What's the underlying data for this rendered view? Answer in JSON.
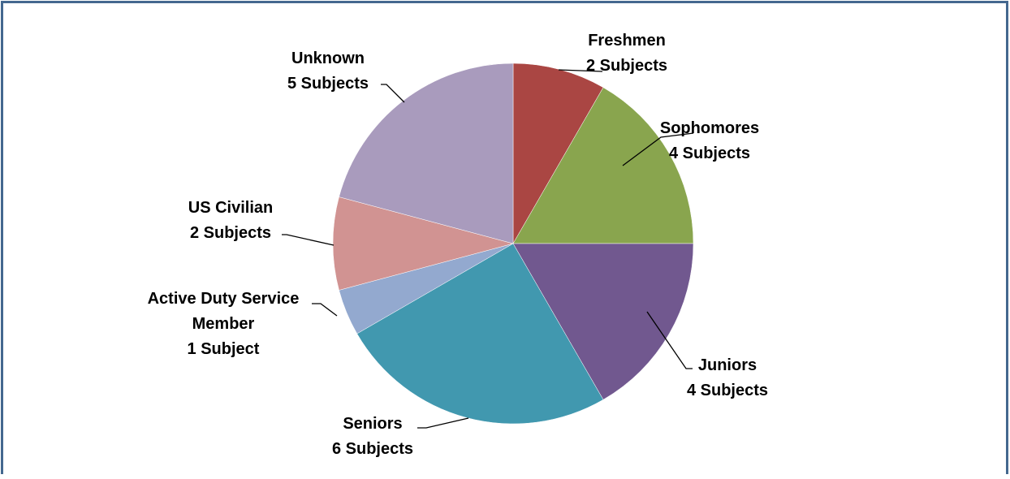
{
  "chart_data": {
    "type": "pie",
    "title": "",
    "start_angle_deg": 0,
    "direction": "clockwise",
    "slices": [
      {
        "category": "Freshmen",
        "count_label": "2 Subjects",
        "value": 2,
        "color": "#AA4643"
      },
      {
        "category": "Sophomores",
        "count_label": "4 Subjects",
        "value": 4,
        "color": "#89A54E"
      },
      {
        "category": "Juniors",
        "count_label": "4 Subjects",
        "value": 4,
        "color": "#71588F"
      },
      {
        "category": "Seniors",
        "count_label": "6 Subjects",
        "value": 6,
        "color": "#4198AF"
      },
      {
        "category": "Active Duty Service Member",
        "count_label": "1 Subject",
        "value": 1,
        "color": "#93A9CF"
      },
      {
        "category": "US Civilian",
        "count_label": "2 Subjects",
        "value": 2,
        "color": "#D19392"
      },
      {
        "category": "Unknown",
        "count_label": "5 Subjects",
        "value": 5,
        "color": "#A99BBD"
      }
    ]
  },
  "frame": {
    "border_color": "#44688F"
  }
}
